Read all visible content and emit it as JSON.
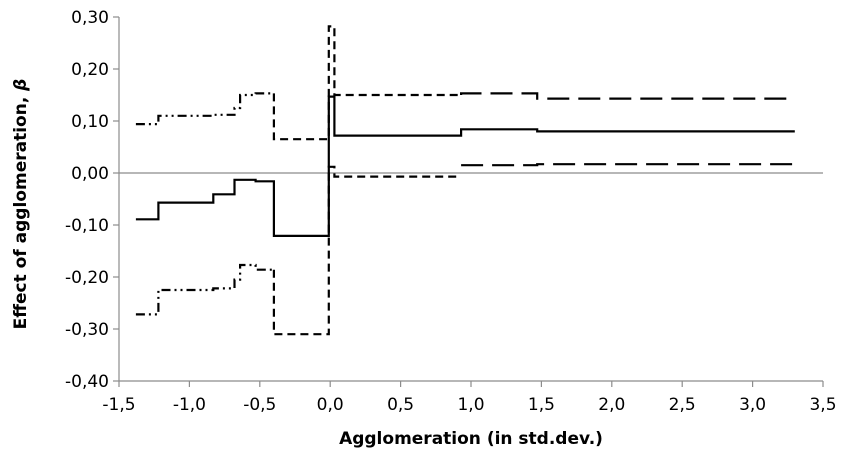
{
  "chart_data": {
    "type": "line",
    "title": "",
    "xlabel": "Agglomeration (in std.dev.)",
    "ylabel": "Effect of agglomeration, ",
    "ylabel_symbol": "β",
    "xlim": [
      -1.5,
      3.5
    ],
    "ylim": [
      -0.4,
      0.3
    ],
    "xticks": [
      -1.5,
      -1.0,
      -0.5,
      0.0,
      0.5,
      1.0,
      1.5,
      2.0,
      2.5,
      3.0,
      3.5
    ],
    "xtick_labels": [
      "-1,5",
      "-1,0",
      "-0,5",
      "0,0",
      "0,5",
      "1,0",
      "1,5",
      "2,0",
      "2,5",
      "3,0",
      "3,5"
    ],
    "yticks": [
      -0.4,
      -0.3,
      -0.2,
      -0.1,
      0.0,
      0.1,
      0.2,
      0.3
    ],
    "ytick_labels": [
      "-0,40",
      "-0,30",
      "-0,20",
      "-0,10",
      "0,00",
      "0,10",
      "0,20",
      "0,30"
    ],
    "grid": false,
    "legend": "none",
    "zero_line": true,
    "series": [
      {
        "style": "solid",
        "points": [
          [
            -1.38,
            -0.089
          ],
          [
            -1.22,
            -0.089
          ],
          [
            -1.22,
            -0.057
          ],
          [
            -0.83,
            -0.057
          ],
          [
            -0.83,
            -0.041
          ],
          [
            -0.68,
            -0.041
          ],
          [
            -0.68,
            -0.013
          ],
          [
            -0.53,
            -0.013
          ],
          [
            -0.53,
            -0.016
          ],
          [
            -0.4,
            -0.016
          ],
          [
            -0.4,
            -0.121
          ],
          [
            -0.01,
            -0.121
          ],
          [
            -0.01,
            0.147
          ],
          [
            0.03,
            0.147
          ],
          [
            0.03,
            0.072
          ],
          [
            0.93,
            0.072
          ],
          [
            0.93,
            0.084
          ],
          [
            1.47,
            0.084
          ],
          [
            1.47,
            0.08
          ],
          [
            3.3,
            0.08
          ]
        ]
      },
      {
        "style": "dash-dot-dot",
        "points": [
          [
            -1.38,
            0.094
          ],
          [
            -1.22,
            0.094
          ],
          [
            -1.22,
            0.11
          ],
          [
            -0.83,
            0.11
          ],
          [
            -0.83,
            0.112
          ],
          [
            -0.68,
            0.112
          ],
          [
            -0.68,
            0.125
          ],
          [
            -0.64,
            0.125
          ],
          [
            -0.64,
            0.15
          ],
          [
            -0.53,
            0.15
          ],
          [
            -0.53,
            0.153
          ],
          [
            -0.4,
            0.153
          ]
        ]
      },
      {
        "style": "dash-dot-dot",
        "points": [
          [
            -1.38,
            -0.272
          ],
          [
            -1.22,
            -0.272
          ],
          [
            -1.22,
            -0.225
          ],
          [
            -0.83,
            -0.225
          ],
          [
            -0.83,
            -0.222
          ],
          [
            -0.68,
            -0.222
          ],
          [
            -0.68,
            -0.205
          ],
          [
            -0.64,
            -0.205
          ],
          [
            -0.64,
            -0.177
          ],
          [
            -0.53,
            -0.177
          ],
          [
            -0.53,
            -0.186
          ],
          [
            -0.4,
            -0.186
          ]
        ]
      },
      {
        "style": "short-dash",
        "points": [
          [
            -0.4,
            0.153
          ],
          [
            -0.4,
            0.065
          ],
          [
            -0.01,
            0.065
          ],
          [
            -0.01,
            0.282
          ],
          [
            0.03,
            0.282
          ],
          [
            0.03,
            0.15
          ],
          [
            0.93,
            0.15
          ]
        ]
      },
      {
        "style": "short-dash",
        "points": [
          [
            -0.4,
            -0.186
          ],
          [
            -0.4,
            -0.31
          ],
          [
            -0.01,
            -0.31
          ],
          [
            -0.01,
            0.012
          ],
          [
            0.03,
            0.012
          ],
          [
            0.03,
            -0.007
          ],
          [
            0.93,
            -0.007
          ]
        ]
      },
      {
        "style": "long-dash",
        "points": [
          [
            0.93,
            0.15
          ],
          [
            0.93,
            0.153
          ],
          [
            1.47,
            0.153
          ],
          [
            1.47,
            0.143
          ],
          [
            3.3,
            0.143
          ]
        ]
      },
      {
        "style": "long-dash",
        "points": [
          [
            0.93,
            0.015
          ],
          [
            1.47,
            0.015
          ],
          [
            1.47,
            0.017
          ],
          [
            3.3,
            0.017
          ]
        ]
      }
    ]
  }
}
